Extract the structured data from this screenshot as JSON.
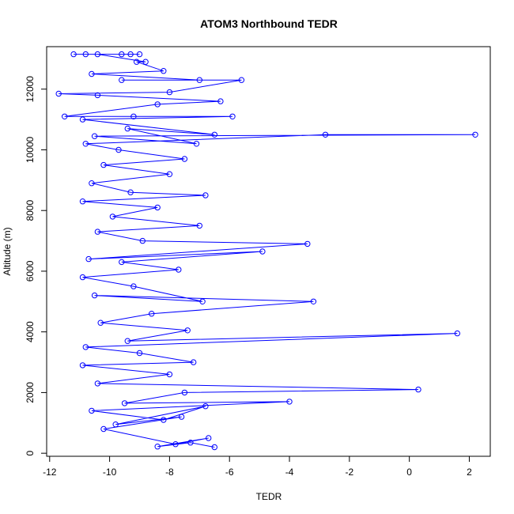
{
  "chart_data": {
    "type": "line",
    "title": "ATOM3 Northbound TEDR",
    "xlabel": "TEDR",
    "ylabel": "Altitude (m)",
    "xlim": [
      -12.1,
      2.7
    ],
    "ylim": [
      -100,
      13400
    ],
    "x_ticks": [
      -12,
      -10,
      -8,
      -6,
      -4,
      -2,
      0,
      2
    ],
    "y_ticks": [
      0,
      2000,
      4000,
      6000,
      8000,
      10000,
      12000
    ],
    "grid": false,
    "legend": "none",
    "series": [
      {
        "color": "#0000ff",
        "marker": "open-circle",
        "points": [
          [
            -6.5,
            200
          ],
          [
            -7.3,
            350
          ],
          [
            -8.4,
            220
          ],
          [
            -6.7,
            500
          ],
          [
            -7.8,
            300
          ],
          [
            -10.2,
            800
          ],
          [
            -7.6,
            1200
          ],
          [
            -9.8,
            950
          ],
          [
            -6.8,
            1550
          ],
          [
            -8.2,
            1100
          ],
          [
            -10.6,
            1400
          ],
          [
            -4.0,
            1700
          ],
          [
            -9.5,
            1650
          ],
          [
            -7.5,
            2000
          ],
          [
            0.3,
            2100
          ],
          [
            -10.4,
            2300
          ],
          [
            -8.0,
            2600
          ],
          [
            -10.9,
            2900
          ],
          [
            -7.2,
            3000
          ],
          [
            -9.0,
            3300
          ],
          [
            -10.8,
            3500
          ],
          [
            1.6,
            3950
          ],
          [
            -9.4,
            3700
          ],
          [
            -7.4,
            4050
          ],
          [
            -10.3,
            4300
          ],
          [
            -8.6,
            4600
          ],
          [
            -3.2,
            5000
          ],
          [
            -10.5,
            5200
          ],
          [
            -6.9,
            5000
          ],
          [
            -9.2,
            5500
          ],
          [
            -10.9,
            5800
          ],
          [
            -7.7,
            6050
          ],
          [
            -9.6,
            6300
          ],
          [
            -4.9,
            6650
          ],
          [
            -10.7,
            6400
          ],
          [
            -3.4,
            6900
          ],
          [
            -8.9,
            7000
          ],
          [
            -10.4,
            7300
          ],
          [
            -7.0,
            7500
          ],
          [
            -9.9,
            7800
          ],
          [
            -8.4,
            8100
          ],
          [
            -10.9,
            8300
          ],
          [
            -6.8,
            8500
          ],
          [
            -9.3,
            8600
          ],
          [
            -10.6,
            8900
          ],
          [
            -8.0,
            9200
          ],
          [
            -10.2,
            9500
          ],
          [
            -7.5,
            9700
          ],
          [
            -9.7,
            10000
          ],
          [
            -10.8,
            10200
          ],
          [
            -2.8,
            10500
          ],
          [
            2.2,
            10500
          ],
          [
            -10.5,
            10450
          ],
          [
            -7.1,
            10200
          ],
          [
            -9.4,
            10700
          ],
          [
            -6.5,
            10500
          ],
          [
            -10.9,
            11000
          ],
          [
            -5.9,
            11100
          ],
          [
            -9.2,
            11100
          ],
          [
            -11.5,
            11100
          ],
          [
            -8.4,
            11500
          ],
          [
            -6.3,
            11600
          ],
          [
            -10.4,
            11800
          ],
          [
            -11.7,
            11850
          ],
          [
            -8.0,
            11900
          ],
          [
            -5.6,
            12300
          ],
          [
            -9.6,
            12300
          ],
          [
            -7.0,
            12300
          ],
          [
            -10.6,
            12500
          ],
          [
            -8.2,
            12600
          ],
          [
            -9.1,
            12900
          ],
          [
            -8.8,
            12900
          ],
          [
            -10.4,
            13150
          ],
          [
            -9.6,
            13150
          ],
          [
            -11.2,
            13150
          ],
          [
            -9.0,
            13150
          ],
          [
            -10.8,
            13150
          ],
          [
            -9.3,
            13150
          ]
        ]
      }
    ]
  }
}
